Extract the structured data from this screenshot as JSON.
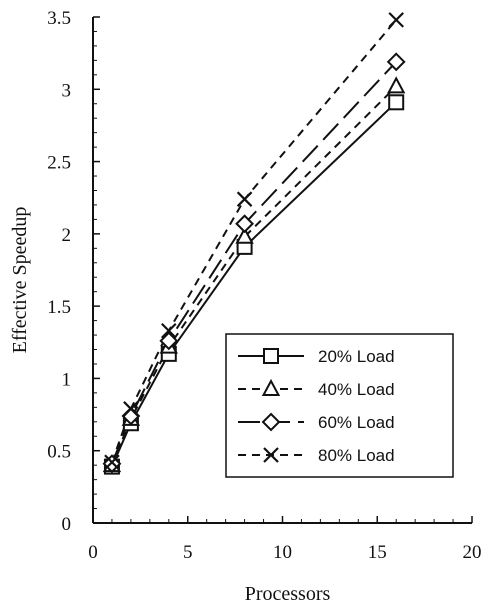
{
  "chart_data": {
    "type": "line",
    "xlabel": "Processors",
    "ylabel": "Effective Speedup",
    "xlim": [
      0,
      20
    ],
    "ylim": [
      0,
      3.5
    ],
    "xticks": [
      0,
      5,
      10,
      15,
      20
    ],
    "yticks": [
      0,
      0.5,
      1,
      1.5,
      2,
      2.5,
      3,
      3.5
    ],
    "xtick_labels": [
      "0",
      "5",
      "10",
      "15",
      "20"
    ],
    "ytick_labels": [
      "0",
      "0.5",
      "1",
      "1.5",
      "2",
      "2.5",
      "3",
      "3.5"
    ],
    "grid": false,
    "legend_position": "bottom-right",
    "x": [
      1,
      2,
      4,
      8,
      16
    ],
    "series": [
      {
        "name": "20% Load",
        "values": [
          0.39,
          0.69,
          1.17,
          1.91,
          2.91
        ],
        "marker": "square",
        "line_style": "solid"
      },
      {
        "name": "40% Load",
        "values": [
          0.4,
          0.72,
          1.22,
          1.98,
          3.02
        ],
        "marker": "triangle",
        "line_style": "short-dash"
      },
      {
        "name": "60% Load",
        "values": [
          0.41,
          0.74,
          1.26,
          2.07,
          3.19
        ],
        "marker": "diamond",
        "line_style": "long-dash"
      },
      {
        "name": "80% Load",
        "values": [
          0.42,
          0.79,
          1.33,
          2.24,
          3.48
        ],
        "marker": "x",
        "line_style": "short-dash"
      }
    ]
  }
}
